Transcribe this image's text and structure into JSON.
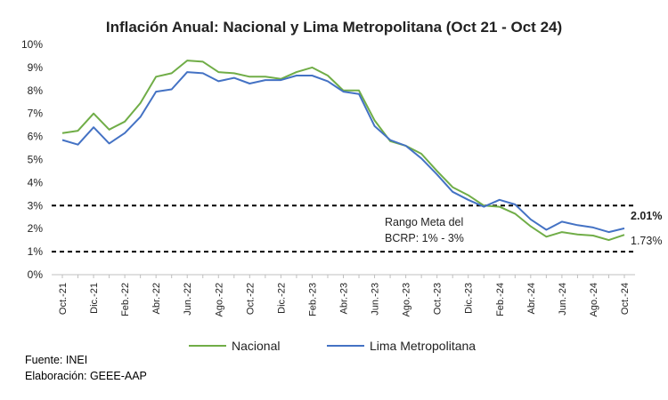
{
  "chart_data": {
    "type": "line",
    "title": "Inflación Anual: Nacional y Lima Metropolitana (Oct 21 - Oct 24)",
    "xlabel": "",
    "ylabel": "",
    "ylim": [
      0,
      10
    ],
    "grid": false,
    "legend": "bottom-center",
    "yticks": [
      "0%",
      "1%",
      "2%",
      "3%",
      "4%",
      "5%",
      "6%",
      "7%",
      "8%",
      "9%",
      "10%"
    ],
    "x": [
      "Oct.21",
      "Nov.21",
      "Dic.21",
      "Ene.22",
      "Feb.22",
      "Mar.22",
      "Abr.22",
      "May.22",
      "Jun.22",
      "Jul.22",
      "Ago.22",
      "Set.22",
      "Oct.22",
      "Nov.22",
      "Dic.22",
      "Ene.23",
      "Feb.23",
      "Mar.23",
      "Abr.23",
      "May.23",
      "Jun.23",
      "Jul.23",
      "Ago.23",
      "Set.23",
      "Oct.23",
      "Nov.23",
      "Dic.23",
      "Ene.24",
      "Feb.24",
      "Mar.24",
      "Abr.24",
      "May.24",
      "Jun.24",
      "Jul.24",
      "Ago.24",
      "Set.24",
      "Oct.24"
    ],
    "xtick_labels": [
      "Oct.-21",
      "Dic.-21",
      "Feb.-22",
      "Abr.-22",
      "Jun.-22",
      "Ago.-22",
      "Oct.-22",
      "Dic.-22",
      "Feb.-23",
      "Abr.-23",
      "Jun.-23",
      "Ago.-23",
      "Oct.-23",
      "Dic.-23",
      "Feb.-24",
      "Abr.-24",
      "Jun.-24",
      "Ago.-24",
      "Oct.-24"
    ],
    "series": [
      {
        "name": "Nacional",
        "color": "#70AD47",
        "values": [
          6.15,
          6.25,
          7.0,
          6.3,
          6.65,
          7.45,
          8.6,
          8.75,
          9.3,
          9.25,
          8.8,
          8.75,
          8.6,
          8.6,
          8.5,
          8.8,
          9.0,
          8.65,
          8.0,
          8.0,
          6.7,
          5.8,
          5.6,
          5.25,
          4.5,
          3.8,
          3.45,
          3.0,
          2.95,
          2.65,
          2.1,
          1.65,
          1.85,
          1.75,
          1.7,
          1.5,
          1.73
        ]
      },
      {
        "name": "Lima Metropolitana",
        "color": "#4472C4",
        "values": [
          5.85,
          5.65,
          6.4,
          5.7,
          6.15,
          6.85,
          7.95,
          8.05,
          8.8,
          8.75,
          8.4,
          8.55,
          8.3,
          8.45,
          8.45,
          8.65,
          8.65,
          8.4,
          7.95,
          7.85,
          6.45,
          5.85,
          5.6,
          5.05,
          4.35,
          3.6,
          3.25,
          2.95,
          3.25,
          3.05,
          2.4,
          1.95,
          2.3,
          2.15,
          2.05,
          1.85,
          2.01
        ]
      }
    ],
    "reference_lines": [
      1,
      3
    ],
    "annotations": {
      "rango_line1": "Rango Meta del",
      "rango_line2": "BCRP: 1% - 3%",
      "lima_end": "2.01%",
      "nacional_end": "1.73%"
    }
  },
  "footer": {
    "source": "Fuente: INEI",
    "elaboration": "Elaboración: GEEE-AAP"
  }
}
